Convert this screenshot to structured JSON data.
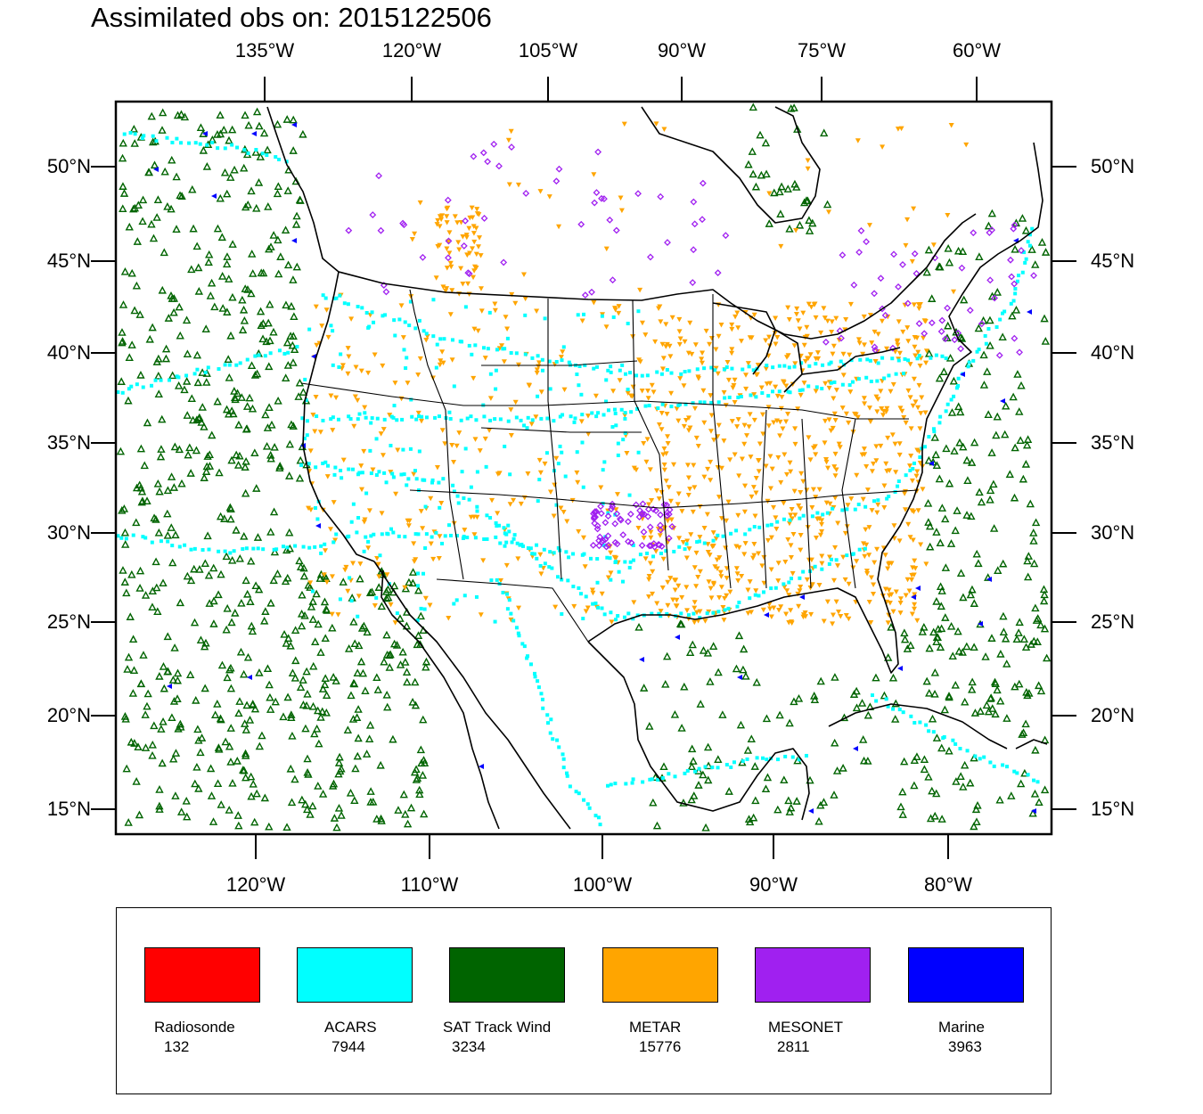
{
  "title": "Assimilated obs on: 2015122506",
  "map": {
    "top_lon_labels": [
      "135°W",
      "120°W",
      "105°W",
      "90°W",
      "75°W",
      "60°W"
    ],
    "bottom_lon_labels": [
      "120°W",
      "110°W",
      "100°W",
      "90°W",
      "80°W"
    ],
    "lat_labels": [
      "50°N",
      "45°N",
      "40°N",
      "35°N",
      "30°N",
      "25°N",
      "20°N",
      "15°N"
    ],
    "colors": {
      "land_outline": "#000000",
      "frame": "#000000"
    }
  },
  "legend": {
    "items": [
      {
        "name": "Radiosonde",
        "count": "132",
        "color": "#ff0000"
      },
      {
        "name": "ACARS",
        "count": "7944",
        "color": "#00ffff"
      },
      {
        "name": "SAT Track Wind",
        "count": "3234",
        "color": "#006400"
      },
      {
        "name": "METAR",
        "count": "15776",
        "color": "#ffa500"
      },
      {
        "name": "MESONET",
        "count": "2811",
        "color": "#a020f0"
      },
      {
        "name": "Marine",
        "count": "3963",
        "color": "#0000ff"
      }
    ]
  }
}
